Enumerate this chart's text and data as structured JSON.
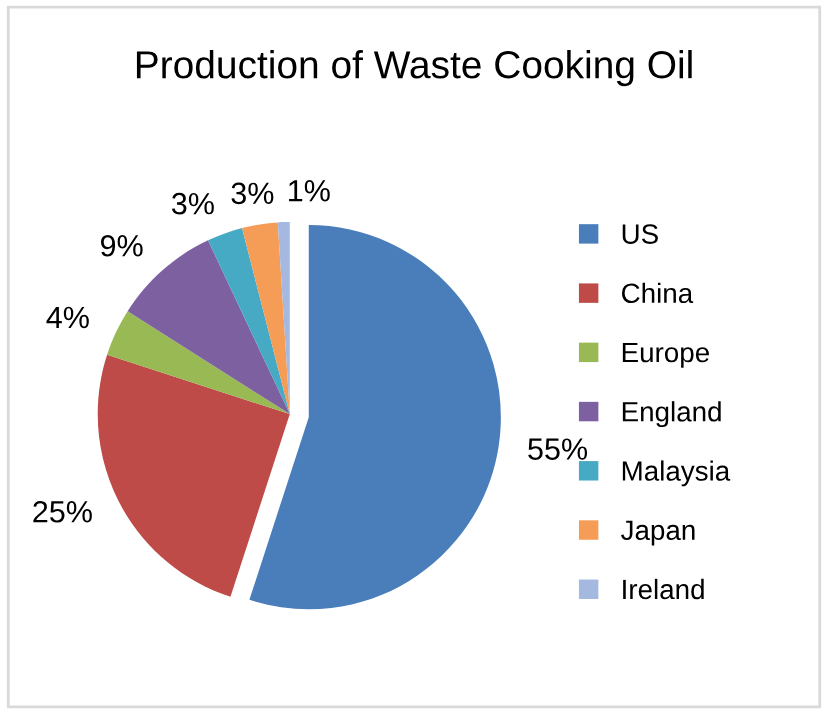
{
  "chart_data": {
    "type": "pie",
    "title": "Production of Waste Cooking Oil",
    "categories": [
      "US",
      "China",
      "Europe",
      "England",
      "Malaysia",
      "Japan",
      "Ireland"
    ],
    "values": [
      55,
      25,
      4,
      9,
      3,
      3,
      1
    ],
    "value_labels": [
      "55%",
      "25%",
      "4%",
      "9%",
      "3%",
      "3%",
      "1%"
    ],
    "colors": [
      "#4a7ebb",
      "#be4b48",
      "#98b954",
      "#7d60a0",
      "#46aac5",
      "#f59d56",
      "#a5b9e0"
    ],
    "legend": "right"
  }
}
